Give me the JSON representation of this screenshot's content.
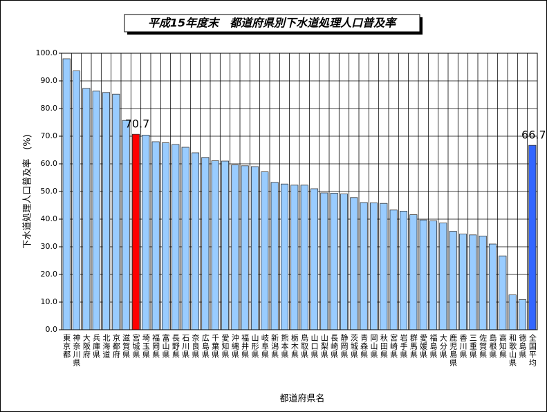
{
  "chart_data": {
    "type": "bar",
    "title": "平成15年度末　都道府県別下水道処理人口普及率",
    "xlabel": "都道府県名",
    "ylabel": "下水道処理人口普及率　(%)",
    "categories": [
      "東京都",
      "神奈川県",
      "大阪府",
      "兵庫県",
      "北海道",
      "京都府",
      "滋賀県",
      "宮城県",
      "埼玉県",
      "福岡県",
      "富山県",
      "長野県",
      "石川県",
      "奈良県",
      "広島県",
      "千葉県",
      "愛知県",
      "沖縄県",
      "福井県",
      "山形県",
      "岐阜県",
      "新潟県",
      "熊本県",
      "栃木県",
      "鳥取県",
      "山口県",
      "山梨県",
      "長崎県",
      "静岡県",
      "茨城県",
      "青森県",
      "岡山県",
      "秋田県",
      "宮崎県",
      "岩手県",
      "群馬県",
      "愛媛県",
      "福島県",
      "大分県",
      "鹿児島県",
      "香川県",
      "三重県",
      "佐賀県",
      "島根県",
      "高知県",
      "和歌山県",
      "徳島県",
      "全国平均"
    ],
    "values": [
      98.0,
      93.6,
      87.3,
      86.3,
      85.8,
      85.2,
      75.7,
      70.7,
      70.4,
      68.0,
      67.6,
      67.0,
      66.0,
      64.0,
      62.3,
      61.1,
      61.0,
      59.6,
      59.3,
      59.0,
      57.1,
      53.3,
      52.7,
      52.3,
      52.3,
      51.0,
      49.5,
      49.4,
      49.1,
      47.8,
      46.0,
      45.9,
      45.7,
      43.3,
      42.9,
      41.6,
      39.7,
      39.4,
      38.6,
      35.6,
      34.6,
      34.3,
      33.9,
      31.0,
      26.7,
      12.6,
      10.9,
      66.7
    ],
    "value_labels": [
      null,
      null,
      null,
      null,
      null,
      null,
      null,
      "70.7",
      null,
      null,
      null,
      null,
      null,
      null,
      null,
      null,
      null,
      null,
      null,
      null,
      null,
      null,
      null,
      null,
      null,
      null,
      null,
      null,
      null,
      null,
      null,
      null,
      null,
      null,
      null,
      null,
      null,
      null,
      null,
      null,
      null,
      null,
      null,
      null,
      null,
      null,
      null,
      "66.7"
    ],
    "colors": [
      "#99ccff",
      "#99ccff",
      "#99ccff",
      "#99ccff",
      "#99ccff",
      "#99ccff",
      "#99ccff",
      "#ff0000",
      "#99ccff",
      "#99ccff",
      "#99ccff",
      "#99ccff",
      "#99ccff",
      "#99ccff",
      "#99ccff",
      "#99ccff",
      "#99ccff",
      "#99ccff",
      "#99ccff",
      "#99ccff",
      "#99ccff",
      "#99ccff",
      "#99ccff",
      "#99ccff",
      "#99ccff",
      "#99ccff",
      "#99ccff",
      "#99ccff",
      "#99ccff",
      "#99ccff",
      "#99ccff",
      "#99ccff",
      "#99ccff",
      "#99ccff",
      "#99ccff",
      "#99ccff",
      "#99ccff",
      "#99ccff",
      "#99ccff",
      "#99ccff",
      "#99ccff",
      "#99ccff",
      "#99ccff",
      "#99ccff",
      "#99ccff",
      "#99ccff",
      "#99ccff",
      "#3366ff"
    ],
    "ylim": [
      0,
      100
    ],
    "yticks": [
      {
        "value": 0,
        "label": "0.0"
      },
      {
        "value": 10,
        "label": "10.0"
      },
      {
        "value": 20,
        "label": "20.0"
      },
      {
        "value": 30,
        "label": "30.0"
      },
      {
        "value": 40,
        "label": "40.0"
      },
      {
        "value": 50,
        "label": "50.0"
      },
      {
        "value": 60,
        "label": "60.0"
      },
      {
        "value": 70,
        "label": "70.0"
      },
      {
        "value": 80,
        "label": "80.0"
      },
      {
        "value": 90,
        "label": "90.0"
      },
      {
        "value": 100,
        "label": "100.0"
      }
    ],
    "grid": true
  }
}
